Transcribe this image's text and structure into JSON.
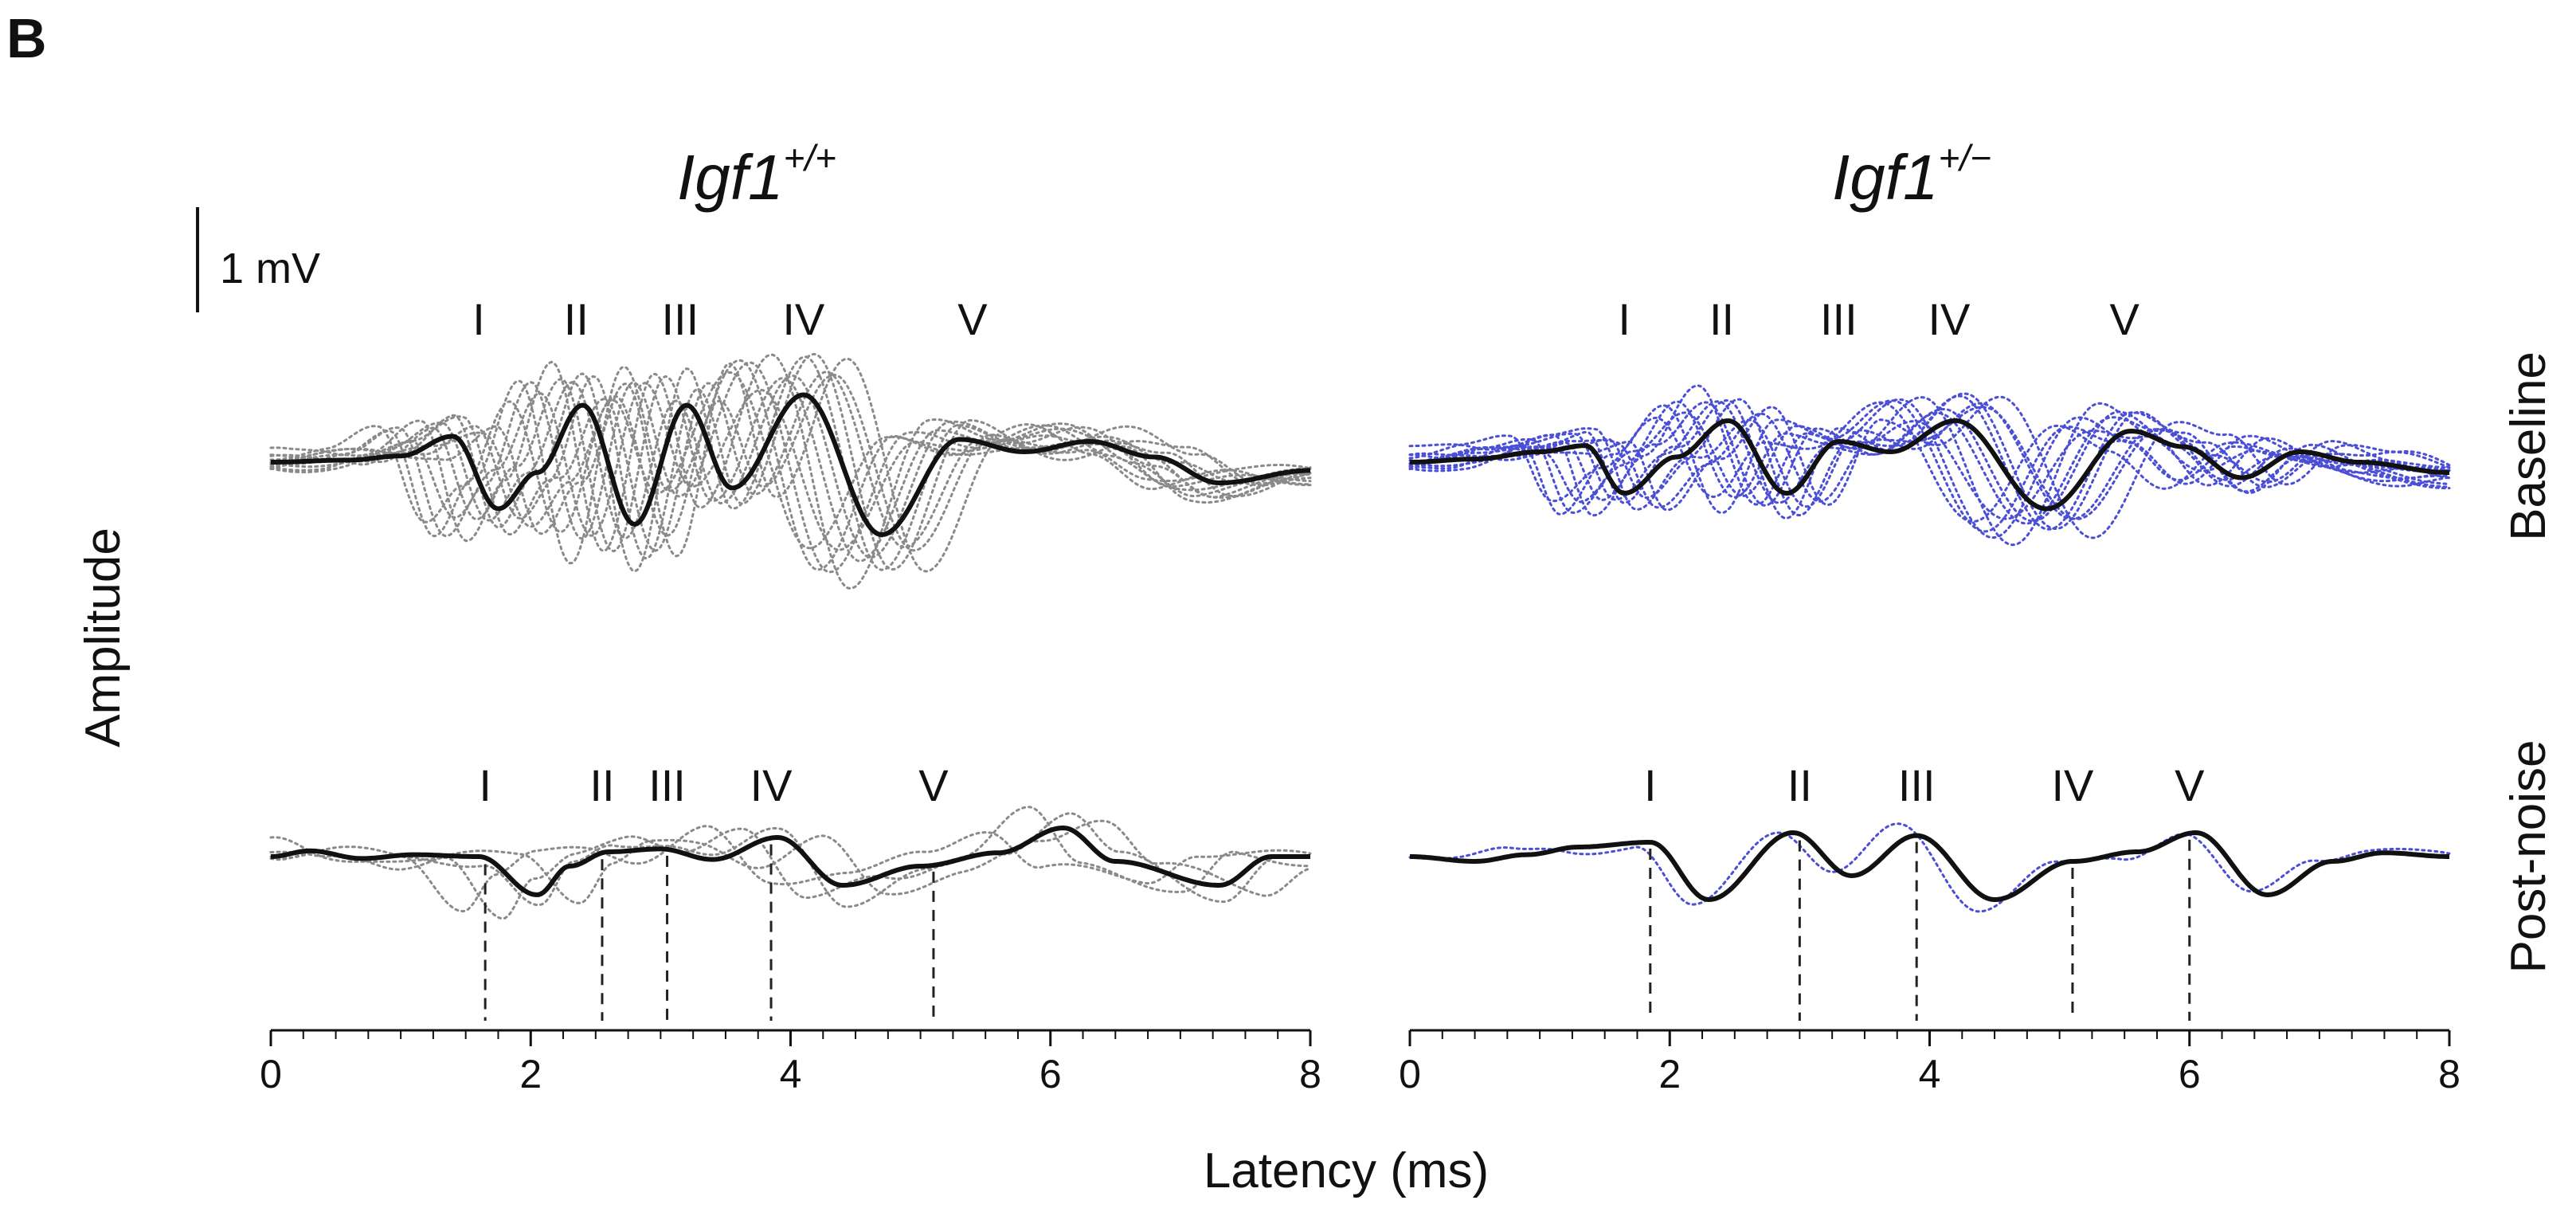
{
  "figure": {
    "panel_letter": "B",
    "y_axis_label": "Amplitude",
    "x_axis_label": "Latency (ms)",
    "scale_bar_label": "1 mV",
    "row_labels": [
      "Baseline",
      "Post-noise"
    ],
    "columns": [
      {
        "base": "Igf1",
        "superscript": "+/+"
      },
      {
        "base": "Igf1",
        "superscript": "+/−"
      }
    ]
  },
  "chart_data": {
    "type": "line",
    "x_axis": {
      "label": "Latency (ms)",
      "range": [
        0,
        8
      ],
      "ticks": [
        "0",
        "2",
        "4",
        "6",
        "8"
      ]
    },
    "y_axis": {
      "label": "Amplitude",
      "scale_bar": "1 mV",
      "scale_bar_mV": 1
    },
    "grid": false,
    "colors": {
      "mean": "#111111",
      "wt_traces": "#8a8a8a",
      "het_traces": "#4a4fd6",
      "guides": "#222222"
    },
    "panels": [
      {
        "genotype": "Igf1+/+",
        "condition": "Baseline",
        "peaks": [
          {
            "label": "I",
            "x": 1.6
          },
          {
            "label": "II",
            "x": 2.35
          },
          {
            "label": "III",
            "x": 3.15
          },
          {
            "label": "IV",
            "x": 4.1
          },
          {
            "label": "V",
            "x": 5.4
          }
        ],
        "mean_trace": [
          [
            0,
            0
          ],
          [
            0.6,
            0.02
          ],
          [
            1.0,
            0.06
          ],
          [
            1.4,
            0.25
          ],
          [
            1.75,
            -0.45
          ],
          [
            2.05,
            -0.1
          ],
          [
            2.4,
            0.55
          ],
          [
            2.8,
            -0.6
          ],
          [
            3.2,
            0.55
          ],
          [
            3.55,
            -0.25
          ],
          [
            4.1,
            0.65
          ],
          [
            4.7,
            -0.7
          ],
          [
            5.3,
            0.22
          ],
          [
            5.8,
            0.1
          ],
          [
            6.3,
            0.2
          ],
          [
            6.8,
            0.05
          ],
          [
            7.3,
            -0.2
          ],
          [
            8.0,
            -0.08
          ]
        ],
        "individual_traces": {
          "count": 12,
          "color": "#8a8a8a",
          "style": "dotted"
        }
      },
      {
        "genotype": "Igf1+/-",
        "condition": "Baseline",
        "peaks": [
          {
            "label": "I",
            "x": 1.65
          },
          {
            "label": "II",
            "x": 2.4
          },
          {
            "label": "III",
            "x": 3.3
          },
          {
            "label": "IV",
            "x": 4.15
          },
          {
            "label": "V",
            "x": 5.5
          }
        ],
        "mean_trace": [
          [
            0,
            0
          ],
          [
            0.5,
            0.03
          ],
          [
            1.0,
            0.1
          ],
          [
            1.35,
            0.16
          ],
          [
            1.65,
            -0.3
          ],
          [
            2.05,
            0.05
          ],
          [
            2.45,
            0.4
          ],
          [
            2.9,
            -0.3
          ],
          [
            3.3,
            0.2
          ],
          [
            3.7,
            0.1
          ],
          [
            4.2,
            0.4
          ],
          [
            4.9,
            -0.45
          ],
          [
            5.55,
            0.3
          ],
          [
            5.95,
            0.15
          ],
          [
            6.4,
            -0.15
          ],
          [
            6.85,
            0.1
          ],
          [
            7.3,
            0.0
          ],
          [
            8.0,
            -0.1
          ]
        ],
        "individual_traces": {
          "count": 12,
          "color": "#4a4fd6",
          "style": "dotted"
        }
      },
      {
        "genotype": "Igf1+/+",
        "condition": "Post-noise",
        "peaks": [
          {
            "label": "I",
            "x": 1.65
          },
          {
            "label": "II",
            "x": 2.55
          },
          {
            "label": "III",
            "x": 3.05
          },
          {
            "label": "IV",
            "x": 3.85
          },
          {
            "label": "V",
            "x": 5.1
          }
        ],
        "mean_trace": [
          [
            0,
            0
          ],
          [
            0.3,
            0.06
          ],
          [
            0.7,
            -0.02
          ],
          [
            1.1,
            0.02
          ],
          [
            1.6,
            0.0
          ],
          [
            2.05,
            -0.4
          ],
          [
            2.3,
            -0.1
          ],
          [
            2.6,
            0.05
          ],
          [
            3.0,
            0.08
          ],
          [
            3.4,
            -0.03
          ],
          [
            3.9,
            0.2
          ],
          [
            4.4,
            -0.3
          ],
          [
            5.0,
            -0.1
          ],
          [
            5.6,
            0.04
          ],
          [
            6.1,
            0.3
          ],
          [
            6.5,
            -0.05
          ],
          [
            7.3,
            -0.3
          ],
          [
            7.7,
            0.0
          ],
          [
            8.0,
            0.0
          ]
        ],
        "individual_traces": {
          "count": 4,
          "color": "#8a8a8a",
          "style": "dotted"
        }
      },
      {
        "genotype": "Igf1+/-",
        "condition": "Post-noise",
        "peaks": [
          {
            "label": "I",
            "x": 1.85
          },
          {
            "label": "II",
            "x": 3.0
          },
          {
            "label": "III",
            "x": 3.9
          },
          {
            "label": "IV",
            "x": 5.1
          },
          {
            "label": "V",
            "x": 6.0
          }
        ],
        "mean_trace": [
          [
            0,
            0
          ],
          [
            0.5,
            -0.05
          ],
          [
            0.9,
            0.02
          ],
          [
            1.3,
            0.1
          ],
          [
            1.85,
            0.15
          ],
          [
            2.3,
            -0.45
          ],
          [
            2.95,
            0.25
          ],
          [
            3.4,
            -0.2
          ],
          [
            3.9,
            0.22
          ],
          [
            4.5,
            -0.45
          ],
          [
            5.1,
            -0.05
          ],
          [
            5.6,
            0.05
          ],
          [
            6.05,
            0.25
          ],
          [
            6.6,
            -0.4
          ],
          [
            7.1,
            -0.05
          ],
          [
            7.5,
            0.04
          ],
          [
            8.0,
            0.0
          ]
        ],
        "individual_traces": {
          "count": 1,
          "color": "#4a4fd6",
          "style": "dotted"
        }
      }
    ]
  }
}
